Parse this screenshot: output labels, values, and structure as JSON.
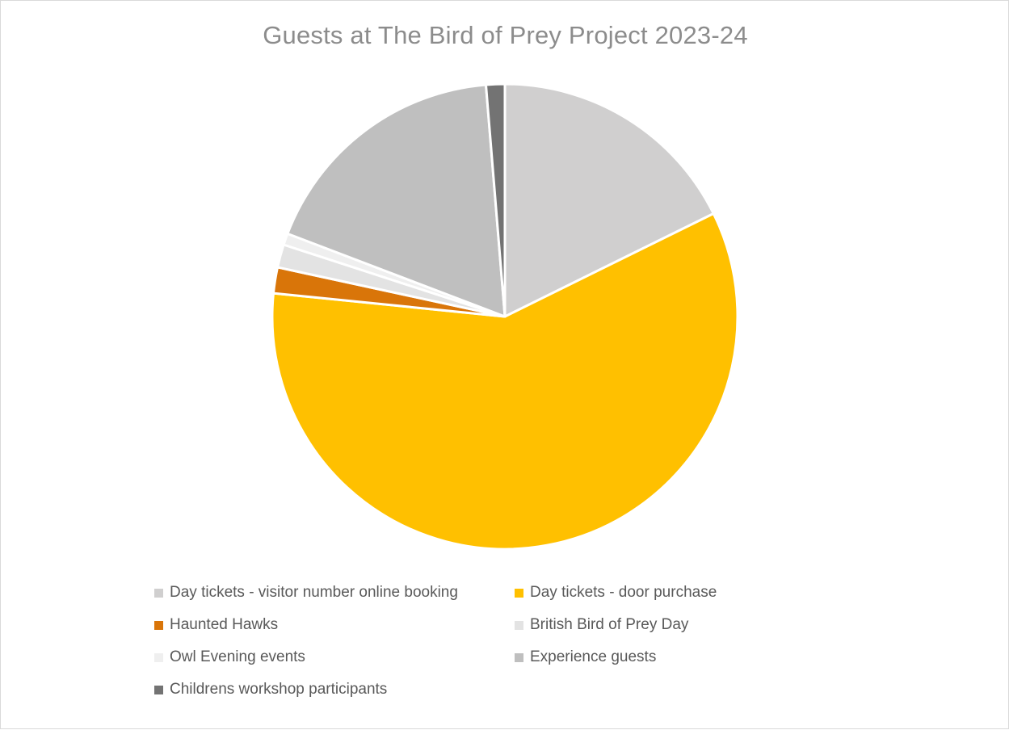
{
  "chart_data": {
    "type": "pie",
    "title": "Guests at The Bird of Prey Project 2023-24",
    "series": [
      {
        "values": [
          {
            "label": "Day tickets - visitor number online booking",
            "percent": 17.7,
            "color": "#d0cfcf"
          },
          {
            "label": "Day tickets - door purchase",
            "percent": 58.9,
            "color": "#ffc000"
          },
          {
            "label": "Haunted Hawks",
            "percent": 1.8,
            "color": "#d97509"
          },
          {
            "label": "British Bird of Prey Day",
            "percent": 1.6,
            "color": "#e3e3e3"
          },
          {
            "label": "Owl Evening events",
            "percent": 0.8,
            "color": "#efefef"
          },
          {
            "label": "Experience guests",
            "percent": 17.9,
            "color": "#bfbfbf"
          },
          {
            "label": "Childrens workshop participants",
            "percent": 1.3,
            "color": "#737373"
          }
        ]
      }
    ],
    "start_angle_deg": 0,
    "direction": "clockwise",
    "legend": "bottom"
  }
}
